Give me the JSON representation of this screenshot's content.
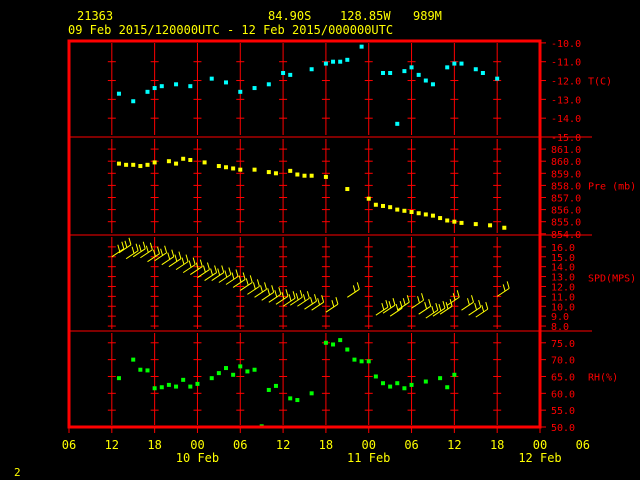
{
  "header": {
    "station": "21363",
    "lat": "84.90S",
    "lon": "128.85W",
    "elev": "989M",
    "period": "09 Feb 2015/120000UTC - 12 Feb 2015/000000UTC"
  },
  "page_number": "2",
  "colors": {
    "frame": "#ff0000",
    "grid": "#ff0000",
    "temp": "#00ffff",
    "pressure": "#ffff00",
    "wind": "#ffff00",
    "rh": "#00ff00",
    "labels": "#ff0000",
    "time_labels": "#ffff00"
  },
  "chart_data": {
    "type": "scatter",
    "x_axis": {
      "unit": "hours since start",
      "range": [
        -6,
        60
      ],
      "ticks": [
        -6,
        0,
        6,
        12,
        18,
        24,
        30,
        36,
        42,
        48,
        54,
        60
      ],
      "tick_labels": [
        "06",
        "12",
        "18",
        "00",
        "06",
        "12",
        "18",
        "00",
        "06",
        "12",
        "18",
        "00",
        "06"
      ],
      "tick_hours": [
        -6,
        0,
        6,
        12,
        18,
        24,
        30,
        36,
        42,
        48,
        54,
        60,
        66
      ],
      "day_labels": [
        {
          "label": "10 Feb",
          "hour": 12
        },
        {
          "label": "11 Feb",
          "hour": 36
        },
        {
          "label": "12 Feb",
          "hour": 60
        }
      ]
    },
    "panels": [
      {
        "name": "T(C)",
        "ticks": [
          -10.0,
          -11.0,
          -12.0,
          -13.0,
          -14.0,
          -15.0
        ],
        "tick_labels": [
          "-10.0",
          "-11.0",
          "-12.0",
          "-13.0",
          "-14.0",
          "-15.0"
        ],
        "ylim": [
          -15.0,
          -9.9
        ],
        "label_value": -12.0,
        "points": [
          [
            1,
            -12.7
          ],
          [
            3,
            -13.1
          ],
          [
            5,
            -12.6
          ],
          [
            6,
            -12.4
          ],
          [
            7,
            -12.3
          ],
          [
            9,
            -12.2
          ],
          [
            11,
            -12.3
          ],
          [
            14,
            -11.9
          ],
          [
            16,
            -12.1
          ],
          [
            18,
            -12.6
          ],
          [
            20,
            -12.4
          ],
          [
            22,
            -12.2
          ],
          [
            24,
            -11.6
          ],
          [
            25,
            -11.7
          ],
          [
            28,
            -11.4
          ],
          [
            30,
            -11.1
          ],
          [
            31,
            -11.0
          ],
          [
            32,
            -11.0
          ],
          [
            33,
            -10.9
          ],
          [
            35,
            -10.2
          ],
          [
            38,
            -11.6
          ],
          [
            39,
            -11.6
          ],
          [
            40,
            -14.3
          ],
          [
            41,
            -11.5
          ],
          [
            42,
            -11.3
          ],
          [
            43,
            -11.7
          ],
          [
            44,
            -12.0
          ],
          [
            45,
            -12.2
          ],
          [
            47,
            -11.3
          ],
          [
            48,
            -11.1
          ],
          [
            49,
            -11.1
          ],
          [
            51,
            -11.4
          ],
          [
            52,
            -11.6
          ],
          [
            54,
            -11.9
          ]
        ]
      },
      {
        "name": "Pre (mb)",
        "ticks": [
          861.0,
          860.0,
          859.0,
          858.0,
          857.0,
          856.0,
          855.0,
          854.0
        ],
        "tick_labels": [
          "861.0",
          "860.0",
          "859.0",
          "858.0",
          "857.0",
          "856.0",
          "855.0",
          "854.0"
        ],
        "ylim": [
          853.9,
          862.0
        ],
        "label_value": 858.0,
        "points": [
          [
            1,
            859.8
          ],
          [
            2,
            859.7
          ],
          [
            3,
            859.7
          ],
          [
            4,
            859.6
          ],
          [
            5,
            859.7
          ],
          [
            6,
            859.9
          ],
          [
            8,
            860.0
          ],
          [
            9,
            859.8
          ],
          [
            10,
            860.2
          ],
          [
            11,
            860.1
          ],
          [
            13,
            859.9
          ],
          [
            15,
            859.6
          ],
          [
            16,
            859.5
          ],
          [
            17,
            859.4
          ],
          [
            18,
            859.3
          ],
          [
            20,
            859.3
          ],
          [
            22,
            859.1
          ],
          [
            23,
            859.0
          ],
          [
            25,
            859.2
          ],
          [
            26,
            858.9
          ],
          [
            27,
            858.8
          ],
          [
            28,
            858.8
          ],
          [
            30,
            858.7
          ],
          [
            33,
            857.7
          ],
          [
            36,
            856.9
          ],
          [
            37,
            856.4
          ],
          [
            38,
            856.3
          ],
          [
            39,
            856.2
          ],
          [
            40,
            856.0
          ],
          [
            41,
            855.9
          ],
          [
            42,
            855.8
          ],
          [
            43,
            855.7
          ],
          [
            44,
            855.6
          ],
          [
            45,
            855.5
          ],
          [
            46,
            855.3
          ],
          [
            47,
            855.1
          ],
          [
            48,
            855.0
          ],
          [
            49,
            854.9
          ],
          [
            51,
            854.8
          ],
          [
            53,
            854.7
          ],
          [
            55,
            854.5
          ]
        ]
      },
      {
        "name": "SPD(MPS)",
        "ticks": [
          16.0,
          15.0,
          14.0,
          13.0,
          12.0,
          11.0,
          10.0,
          9.0,
          8.0
        ],
        "tick_labels": [
          "16.0",
          "15.0",
          "14.0",
          "13.0",
          "12.0",
          "11.0",
          "10.0",
          "9.0",
          "8.0"
        ],
        "ylim": [
          7.5,
          17.2
        ],
        "label_value": 12.9,
        "points": [
          [
            0,
            15.0
          ],
          [
            1,
            15.4
          ],
          [
            2,
            14.8
          ],
          [
            3,
            15.0
          ],
          [
            4,
            14.9
          ],
          [
            5,
            14.5
          ],
          [
            6,
            14.6
          ],
          [
            7,
            14.2
          ],
          [
            8,
            14.0
          ],
          [
            9,
            13.7
          ],
          [
            10,
            13.4
          ],
          [
            11,
            13.2
          ],
          [
            12,
            12.9
          ],
          [
            13,
            12.6
          ],
          [
            14,
            12.6
          ],
          [
            15,
            12.4
          ],
          [
            16,
            12.2
          ],
          [
            17,
            11.9
          ],
          [
            18,
            11.6
          ],
          [
            19,
            11.2
          ],
          [
            20,
            10.9
          ],
          [
            21,
            10.6
          ],
          [
            22,
            10.4
          ],
          [
            23,
            10.2
          ],
          [
            24,
            10.0
          ],
          [
            25,
            10.1
          ],
          [
            26,
            10.0
          ],
          [
            27,
            9.7
          ],
          [
            28,
            9.6
          ],
          [
            30,
            9.4
          ],
          [
            33,
            10.9
          ],
          [
            37,
            9.1
          ],
          [
            38,
            9.3
          ],
          [
            39,
            9.0
          ],
          [
            40,
            9.6
          ],
          [
            42,
            9.8
          ],
          [
            43,
            9.2
          ],
          [
            44,
            8.8
          ],
          [
            45,
            9.0
          ],
          [
            46,
            9.2
          ],
          [
            47,
            10.1
          ],
          [
            49,
            9.6
          ],
          [
            50,
            9.1
          ],
          [
            51,
            8.9
          ],
          [
            54,
            11.0
          ]
        ]
      },
      {
        "name": "RH(%)",
        "ticks": [
          75.0,
          70.0,
          65.0,
          60.0,
          55.0,
          50.0
        ],
        "tick_labels": [
          "75.0",
          "70.0",
          "65.0",
          "60.0",
          "55.0",
          "50.0"
        ],
        "ylim": [
          50.0,
          78.5
        ],
        "label_value": 65.0,
        "points": [
          [
            1,
            64.5
          ],
          [
            3,
            70.0
          ],
          [
            4,
            67.0
          ],
          [
            5,
            66.8
          ],
          [
            6,
            61.5
          ],
          [
            7,
            61.8
          ],
          [
            8,
            62.5
          ],
          [
            9,
            62.0
          ],
          [
            10,
            64.0
          ],
          [
            11,
            62.0
          ],
          [
            12,
            62.8
          ],
          [
            14,
            64.5
          ],
          [
            15,
            66.0
          ],
          [
            16,
            67.5
          ],
          [
            17,
            65.5
          ],
          [
            18,
            68.0
          ],
          [
            19,
            66.5
          ],
          [
            20,
            67.0
          ],
          [
            21,
            50.2
          ],
          [
            22,
            61.0
          ],
          [
            23,
            62.2
          ],
          [
            25,
            58.5
          ],
          [
            26,
            58.0
          ],
          [
            28,
            60.0
          ],
          [
            30,
            75.0
          ],
          [
            31,
            74.5
          ],
          [
            32,
            75.8
          ],
          [
            33,
            73.0
          ],
          [
            34,
            70.0
          ],
          [
            35,
            69.5
          ],
          [
            36,
            69.5
          ],
          [
            37,
            65.0
          ],
          [
            38,
            63.0
          ],
          [
            39,
            62.0
          ],
          [
            40,
            63.0
          ],
          [
            41,
            61.5
          ],
          [
            42,
            62.5
          ],
          [
            44,
            63.5
          ],
          [
            46,
            64.5
          ],
          [
            47,
            61.8
          ],
          [
            48,
            65.5
          ]
        ]
      }
    ]
  }
}
